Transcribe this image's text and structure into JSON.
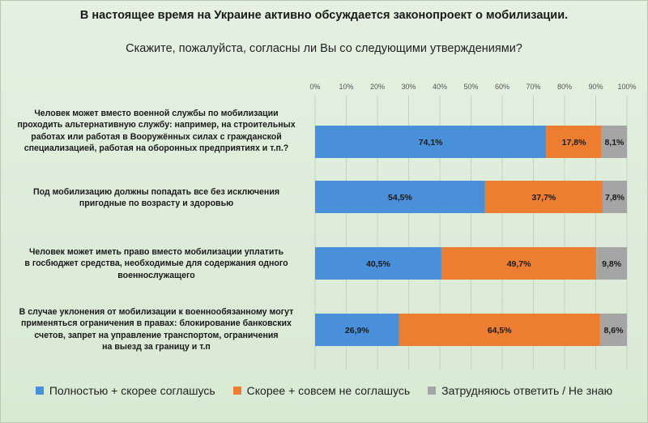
{
  "header": {
    "title": "В настоящее время на Украине активно обсуждается законопроект о мобилизации.",
    "subtitle": "Скажите, пожалуйста, согласны ли Вы со следующими утверждениями?"
  },
  "colors": {
    "agree": "#4a8fd9",
    "disagree": "#ed7d31",
    "dont_know": "#a5a5a5"
  },
  "chart_data": {
    "type": "bar",
    "orientation": "horizontal",
    "stacked": true,
    "xlim": [
      0,
      100
    ],
    "ticks": [
      "0%",
      "10%",
      "20%",
      "30%",
      "40%",
      "50%",
      "60%",
      "70%",
      "80%",
      "90%",
      "100%"
    ],
    "tick_values": [
      0,
      10,
      20,
      30,
      40,
      50,
      60,
      70,
      80,
      90,
      100
    ],
    "grid": true,
    "legend_position": "bottom",
    "categories": [
      "Человек может вместо военной службы по мобилизации проходить альтернативную службу: например, на строительных работах или работая в Вооружённых силах с гражданской специализацией, работая на оборонных предприятиях и т.п.?",
      "Под мобилизацию должны попадать все без исключения пригодные по возрасту и здоровью",
      "Человек может иметь право вместо мобилизации уплатить в госбюджет средства, необходимые для содержания одного военнослужащего",
      "В случае уклонения от мобилизации к военнообязанному могут применяться ограничения в правах: блокирование банковских счетов, запрет на управление транспортом, ограничения на выезд за границу и т.п"
    ],
    "series": [
      {
        "name": "Полностью + скорее соглашусь",
        "values": [
          74.1,
          54.5,
          40.5,
          26.9
        ],
        "labels": [
          "74,1%",
          "54,5%",
          "40,5%",
          "26,9%"
        ]
      },
      {
        "name": "Скорее + совсем не соглашусь",
        "values": [
          17.8,
          37.7,
          49.7,
          64.5
        ],
        "labels": [
          "17,8%",
          "37,7%",
          "49,7%",
          "64,5%"
        ]
      },
      {
        "name": "Затрудняюсь ответить / Не знаю",
        "values": [
          8.1,
          7.8,
          9.8,
          8.6
        ],
        "labels": [
          "8,1%",
          "7,8%",
          "9,8%",
          "8,6%"
        ]
      }
    ]
  },
  "questions": {
    "q1": [
      "Человек может вместо военной службы по мобилизации",
      "проходить альтернативную службу: например, на строительных",
      "работах или работая в Вооружённых силах с гражданской",
      "специализацией, работая на оборонных предприятиях и т.п.?"
    ],
    "q2": [
      "Под мобилизацию должны попадать все без исключения",
      "пригодные по возрасту и здоровью"
    ],
    "q3": [
      "Человек может иметь право вместо мобилизации уплатить",
      "в госбюджет средства, необходимые для содержания одного",
      "военнослужащего"
    ],
    "q4": [
      "В случае уклонения от мобилизации к военнообязанному могут",
      "применяться ограничения в правах: блокирование банковских",
      "счетов, запрет на управление транспортом, ограничения",
      "на выезд за границу и т.п"
    ]
  }
}
